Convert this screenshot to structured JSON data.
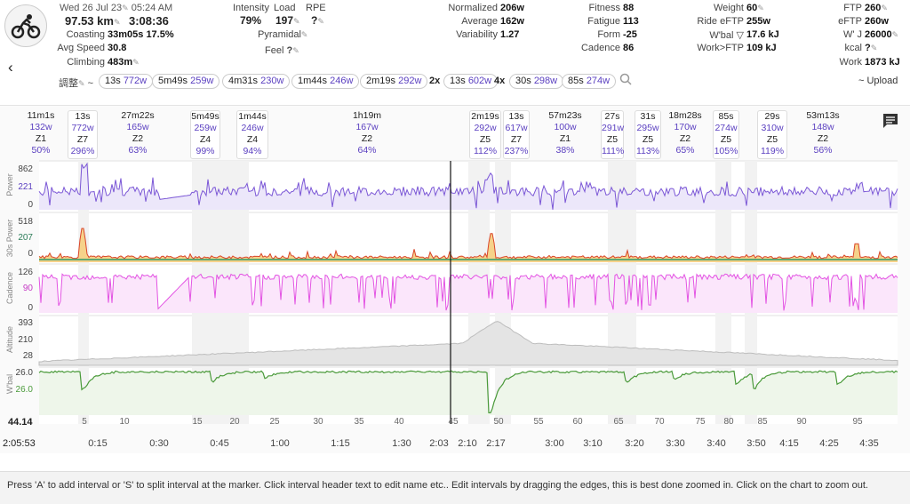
{
  "header": {
    "date": "Wed 26 Jul 23",
    "time": "05:24 AM",
    "distance": "97.53 km",
    "duration": "3:08:36",
    "coasting_label": "Coasting",
    "coasting_time": "33m05s",
    "coasting_pct": "17.5%",
    "avg_speed_label": "Avg Speed",
    "avg_speed": "30.8",
    "climbing_label": "Climbing",
    "climbing": "483m",
    "intensity_label": "Intensity",
    "intensity": "79%",
    "load_label": "Load",
    "load": "197",
    "rpe_label": "RPE",
    "rpe": "?",
    "pyramidal": "Pyramidal",
    "feel_label": "Feel",
    "feel": "?",
    "normalized_label": "Normalized",
    "normalized": "206w",
    "average_label": "Average",
    "average": "162w",
    "variability_label": "Variability",
    "variability": "1.27",
    "fitness_label": "Fitness",
    "fitness": "88",
    "fatigue_label": "Fatigue",
    "fatigue": "113",
    "form_label": "Form",
    "form": "-25",
    "cadence_label": "Cadence",
    "cadence": "86",
    "weight_label": "Weight",
    "weight": "60",
    "ride_eftp_label": "Ride eFTP",
    "ride_eftp": "255w",
    "wbal_label": "W'bal ▽",
    "wbal": "17.6 kJ",
    "work_ftp_label": "Work>FTP",
    "work_ftp": "109 kJ",
    "ftp_label": "FTP",
    "ftp": "260",
    "eftp_label": "eFTP",
    "eftp": "260w",
    "wj_label": "W' J",
    "wj": "26000",
    "kcal_label": "kcal",
    "kcal": "?",
    "work_label": "Work",
    "work": "1873 kJ"
  },
  "toolbar": {
    "adjust_label": "調整",
    "tilde": "~",
    "upload_label": "~ Upload",
    "pills": [
      {
        "t": "13s",
        "p": "772w"
      },
      {
        "t": "5m49s",
        "p": "259w"
      },
      {
        "t": "4m31s",
        "p": "230w"
      },
      {
        "t": "1m44s",
        "p": "246w"
      },
      {
        "t": "2m19s",
        "p": "292w"
      },
      {
        "t": "13s",
        "p": "602w",
        "mult": "2x"
      },
      {
        "t": "30s",
        "p": "298w",
        "mult": "4x"
      },
      {
        "t": "85s",
        "p": "274w"
      }
    ]
  },
  "intervals": [
    {
      "dur": "11m1s",
      "pw": "132w",
      "zone": "Z1",
      "pct": "50%"
    },
    {
      "dur": "13s",
      "pw": "772w",
      "zone": "Z7",
      "pct": "296%"
    },
    {
      "dur": "27m22s",
      "pw": "165w",
      "zone": "Z2",
      "pct": "63%"
    },
    {
      "dur": "5m49s",
      "pw": "259w",
      "zone": "Z4",
      "pct": "99%"
    },
    {
      "dur": "1m44s",
      "pw": "246w",
      "zone": "Z4",
      "pct": "94%"
    },
    {
      "dur": "1h19m",
      "pw": "167w",
      "zone": "Z2",
      "pct": "64%"
    },
    {
      "dur": "2m19s",
      "pw": "292w",
      "zone": "Z5",
      "pct": "112%"
    },
    {
      "dur": "13s",
      "pw": "617w",
      "zone": "Z7",
      "pct": "237%"
    },
    {
      "dur": "57m23s",
      "pw": "100w",
      "zone": "Z1",
      "pct": "38%"
    },
    {
      "dur": "27s",
      "pw": "291w",
      "zone": "Z5",
      "pct": "111%"
    },
    {
      "dur": "31s",
      "pw": "295w",
      "zone": "Z5",
      "pct": "113%"
    },
    {
      "dur": "18m28s",
      "pw": "170w",
      "zone": "Z2",
      "pct": "65%"
    },
    {
      "dur": "85s",
      "pw": "274w",
      "zone": "Z5",
      "pct": "105%"
    },
    {
      "dur": "29s",
      "pw": "310w",
      "zone": "Z5",
      "pct": "119%"
    },
    {
      "dur": "53m13s",
      "pw": "148w",
      "zone": "Z2",
      "pct": "56%"
    }
  ],
  "chart_data": [
    {
      "type": "line",
      "title": "",
      "ylabel": "Power",
      "y_ticks": [
        "862",
        "221",
        "0"
      ],
      "series": [
        {
          "name": "Power",
          "color": "#7b57d6"
        }
      ]
    },
    {
      "type": "area",
      "ylabel": "30s Power",
      "y_ticks": [
        "518",
        "207",
        "0"
      ],
      "series": [
        {
          "name": "30s Power",
          "color": "#2e9a6a"
        }
      ]
    },
    {
      "type": "line",
      "ylabel": "Cadence",
      "y_ticks": [
        "126",
        "90",
        "0"
      ],
      "series": [
        {
          "name": "Cadence",
          "color": "#e353e3"
        }
      ]
    },
    {
      "type": "area",
      "ylabel": "Altitude",
      "y_ticks": [
        "393",
        "210",
        "28"
      ],
      "series": [
        {
          "name": "Altitude",
          "color": "#c8c8c8"
        }
      ]
    },
    {
      "type": "area",
      "ylabel": "W'bal",
      "y_ticks": [
        "26.0",
        "26.0"
      ],
      "series": [
        {
          "name": "W'bal",
          "color": "#4a9a3a"
        }
      ]
    }
  ],
  "x_axis": {
    "cursor_value": "44.14",
    "cursor_time": "2:05:53",
    "km_ticks": [
      "5",
      "10",
      "15",
      "20",
      "25",
      "30",
      "35",
      "40",
      "45",
      "50",
      "55",
      "60",
      "65",
      "70",
      "75",
      "80",
      "85",
      "90",
      "95"
    ],
    "time_ticks": [
      "0:15",
      "0:30",
      "0:45",
      "1:00",
      "1:15",
      "1:30",
      "2:03",
      "2:10",
      "2:17",
      "3:00",
      "3:10",
      "3:20",
      "3:30",
      "3:40",
      "3:50",
      "4:15",
      "4:25",
      "4:35"
    ]
  },
  "footer": {
    "hint": "Press 'A' to add interval or 'S' to split interval at the marker. Click interval header text to edit name etc.. Edit intervals by dragging the edges, this is best done zoomed in. Click on the chart to zoom out."
  }
}
